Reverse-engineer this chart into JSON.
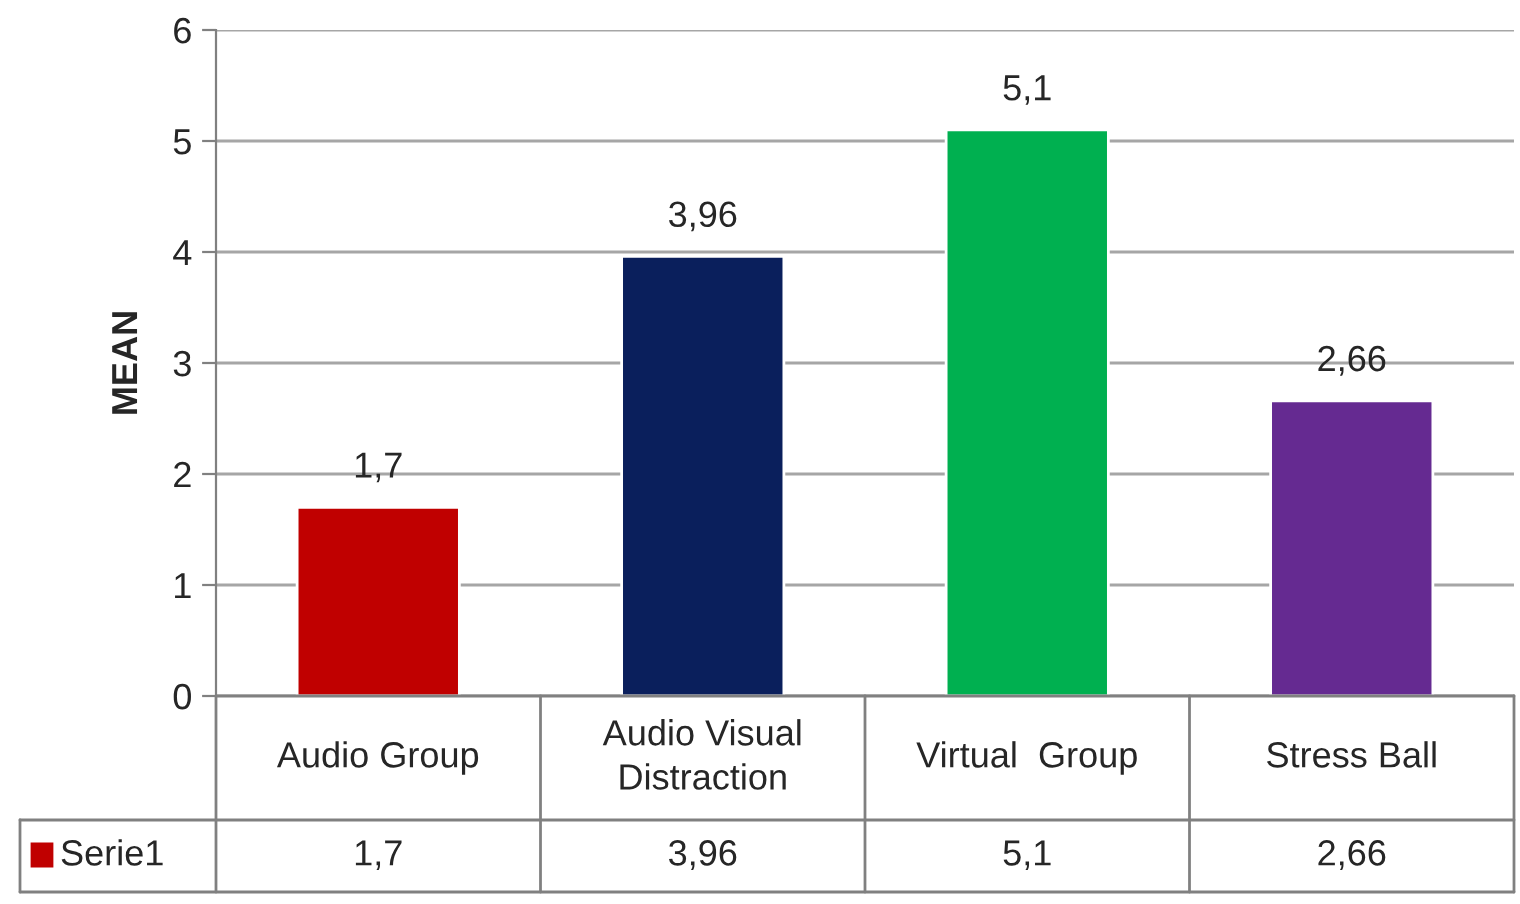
{
  "chart_data": {
    "type": "bar",
    "categories": [
      "Audio Group",
      "Audio Visual\nDistraction",
      "Virtual  Group",
      "Stress Ball"
    ],
    "series": [
      {
        "name": "Serie1",
        "color": "#c00000",
        "values": [
          1.7,
          3.96,
          5.1,
          2.66
        ],
        "colors": [
          "#c00000",
          "#0a1f5c",
          "#00b050",
          "#652a91"
        ],
        "value_labels": [
          "1,7",
          "3,96",
          "5,1",
          "2,66"
        ]
      }
    ],
    "ylabel": "MEAN",
    "ylim": [
      0,
      6
    ],
    "yticks": [
      0,
      1,
      2,
      3,
      4,
      5,
      6
    ],
    "grid": "y",
    "legend": "bottom left"
  }
}
